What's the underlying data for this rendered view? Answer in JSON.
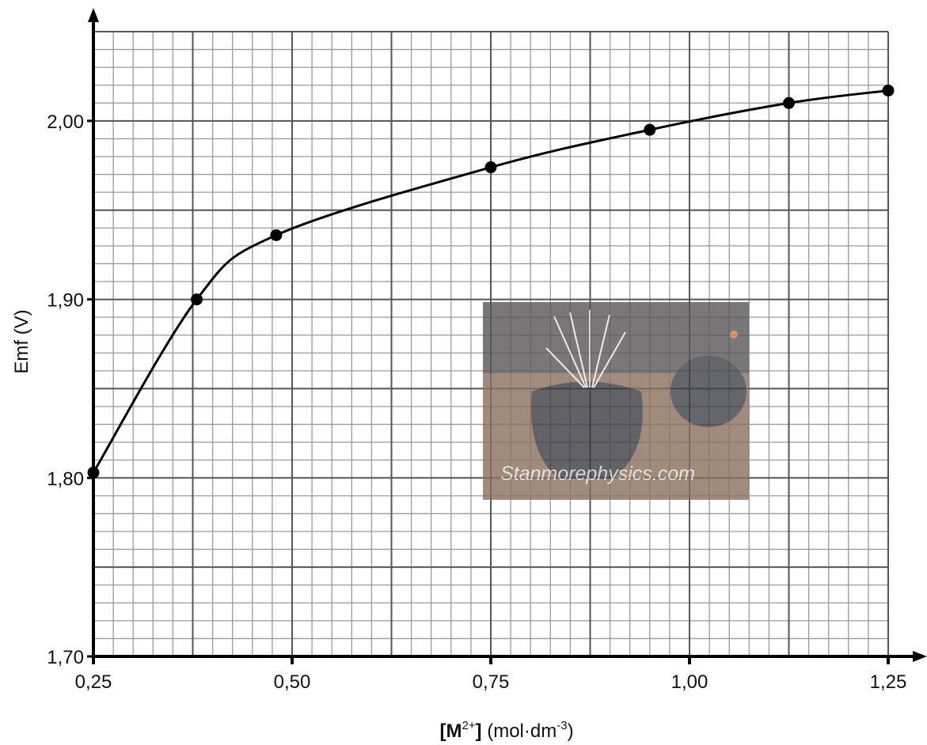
{
  "chart_data": {
    "type": "scatter",
    "title": "",
    "xlabel": {
      "bracket_open": "[",
      "species": "M",
      "charge": "2+",
      "bracket_close": "]",
      "unit_prefix": " (mol·dm",
      "unit_exponent": "-3",
      "unit_suffix": ")"
    },
    "ylabel": "Emf (V)",
    "xlim": [
      0.25,
      1.25
    ],
    "ylim": [
      1.7,
      2.05
    ],
    "x_ticks": [
      0.25,
      0.5,
      0.75,
      1.0,
      1.25
    ],
    "x_tick_labels": [
      "0,25",
      "0,50",
      "0,75",
      "1,00",
      "1,25"
    ],
    "y_ticks": [
      1.7,
      1.8,
      1.9,
      2.0
    ],
    "y_tick_labels": [
      "1,70",
      "1,80",
      "1,90",
      "2,00"
    ],
    "grid": true,
    "series": [
      {
        "points": [
          {
            "x": 0.25,
            "y": 1.803
          },
          {
            "x": 0.38,
            "y": 1.9
          },
          {
            "x": 0.48,
            "y": 1.936
          },
          {
            "x": 0.75,
            "y": 1.974
          },
          {
            "x": 0.95,
            "y": 1.995
          },
          {
            "x": 1.125,
            "y": 2.01
          },
          {
            "x": 1.25,
            "y": 2.017
          }
        ]
      }
    ],
    "watermark": "Stanmorephysics.com"
  }
}
